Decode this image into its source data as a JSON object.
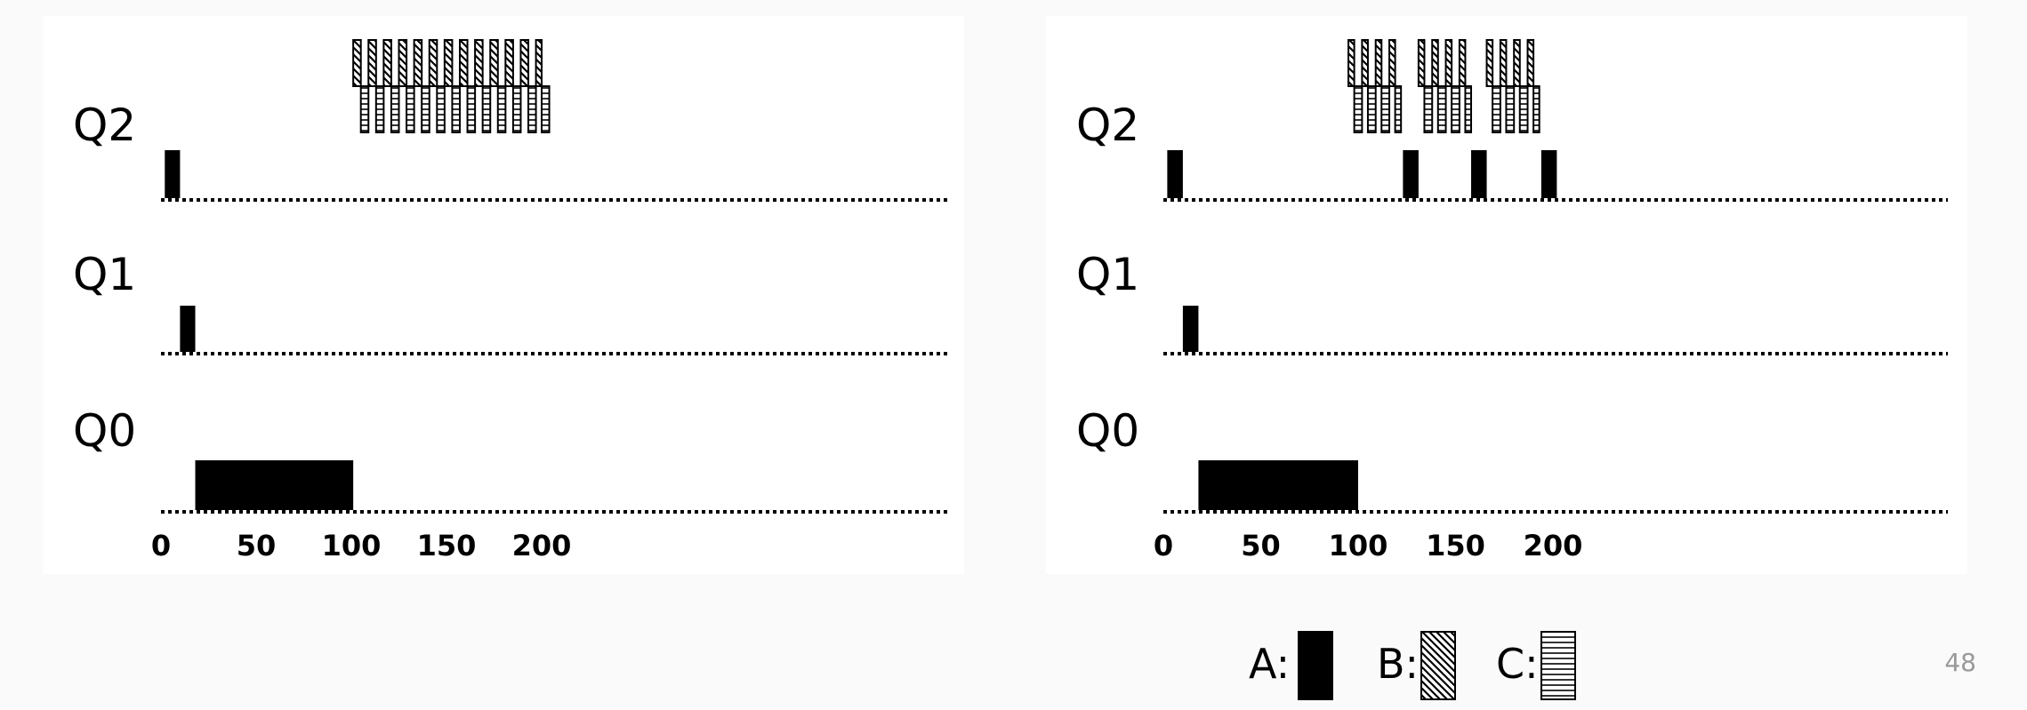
{
  "slide": {
    "page_number": "48"
  },
  "queues": [
    "Q2",
    "Q1",
    "Q0"
  ],
  "axis": {
    "min": 0,
    "max": 200,
    "ticks": [
      "0",
      "50",
      "100",
      "150",
      "200"
    ]
  },
  "legend": [
    {
      "label": "A:",
      "job": "A",
      "pattern": "solid"
    },
    {
      "label": "B:",
      "job": "B",
      "pattern": "diagonal"
    },
    {
      "label": "C:",
      "job": "C",
      "pattern": "horizontal"
    }
  ],
  "chart_data": [
    {
      "type": "gantt",
      "panel": "left",
      "segments": [
        {
          "job": "A",
          "queue": "Q2",
          "start": 2,
          "end": 10
        },
        {
          "job": "A",
          "queue": "Q1",
          "start": 10,
          "end": 18
        },
        {
          "job": "A",
          "queue": "Q0",
          "start": 18,
          "end": 101
        },
        {
          "job": "B",
          "queue": "Q2",
          "start": 101,
          "end": 105
        },
        {
          "job": "C",
          "queue": "Q2",
          "start": 105,
          "end": 109
        },
        {
          "job": "B",
          "queue": "Q2",
          "start": 109,
          "end": 113
        },
        {
          "job": "C",
          "queue": "Q2",
          "start": 113,
          "end": 117
        },
        {
          "job": "B",
          "queue": "Q2",
          "start": 117,
          "end": 121
        },
        {
          "job": "C",
          "queue": "Q2",
          "start": 121,
          "end": 125
        },
        {
          "job": "B",
          "queue": "Q2",
          "start": 125,
          "end": 129
        },
        {
          "job": "C",
          "queue": "Q2",
          "start": 129,
          "end": 133
        },
        {
          "job": "B",
          "queue": "Q2",
          "start": 133,
          "end": 137
        },
        {
          "job": "C",
          "queue": "Q2",
          "start": 137,
          "end": 141
        },
        {
          "job": "B",
          "queue": "Q2",
          "start": 141,
          "end": 145
        },
        {
          "job": "C",
          "queue": "Q2",
          "start": 145,
          "end": 149
        },
        {
          "job": "B",
          "queue": "Q2",
          "start": 149,
          "end": 153
        },
        {
          "job": "C",
          "queue": "Q2",
          "start": 153,
          "end": 157
        },
        {
          "job": "B",
          "queue": "Q2",
          "start": 157,
          "end": 161
        },
        {
          "job": "C",
          "queue": "Q2",
          "start": 161,
          "end": 165
        },
        {
          "job": "B",
          "queue": "Q2",
          "start": 165,
          "end": 169
        },
        {
          "job": "C",
          "queue": "Q2",
          "start": 169,
          "end": 173
        },
        {
          "job": "B",
          "queue": "Q2",
          "start": 173,
          "end": 177
        },
        {
          "job": "C",
          "queue": "Q2",
          "start": 177,
          "end": 181
        },
        {
          "job": "B",
          "queue": "Q2",
          "start": 181,
          "end": 185
        },
        {
          "job": "C",
          "queue": "Q2",
          "start": 185,
          "end": 189
        },
        {
          "job": "B",
          "queue": "Q2",
          "start": 189,
          "end": 193
        },
        {
          "job": "C",
          "queue": "Q2",
          "start": 193,
          "end": 197
        },
        {
          "job": "B",
          "queue": "Q2",
          "start": 197,
          "end": 200
        },
        {
          "job": "C",
          "queue": "Q2",
          "start": 200,
          "end": 204
        }
      ]
    },
    {
      "type": "gantt",
      "panel": "right",
      "segments": [
        {
          "job": "A",
          "queue": "Q2",
          "start": 2,
          "end": 10
        },
        {
          "job": "A",
          "queue": "Q1",
          "start": 10,
          "end": 18
        },
        {
          "job": "A",
          "queue": "Q0",
          "start": 18,
          "end": 100
        },
        {
          "job": "B",
          "queue": "Q2",
          "start": 95,
          "end": 98
        },
        {
          "job": "C",
          "queue": "Q2",
          "start": 98,
          "end": 102
        },
        {
          "job": "B",
          "queue": "Q2",
          "start": 102,
          "end": 105
        },
        {
          "job": "C",
          "queue": "Q2",
          "start": 105,
          "end": 109
        },
        {
          "job": "B",
          "queue": "Q2",
          "start": 109,
          "end": 112
        },
        {
          "job": "C",
          "queue": "Q2",
          "start": 112,
          "end": 116
        },
        {
          "job": "B",
          "queue": "Q2",
          "start": 116,
          "end": 119
        },
        {
          "job": "C",
          "queue": "Q2",
          "start": 119,
          "end": 122
        },
        {
          "job": "A",
          "queue": "Q2",
          "start": 123,
          "end": 131
        },
        {
          "job": "B",
          "queue": "Q2",
          "start": 131,
          "end": 134
        },
        {
          "job": "C",
          "queue": "Q2",
          "start": 134,
          "end": 138
        },
        {
          "job": "B",
          "queue": "Q2",
          "start": 138,
          "end": 141
        },
        {
          "job": "C",
          "queue": "Q2",
          "start": 141,
          "end": 145
        },
        {
          "job": "B",
          "queue": "Q2",
          "start": 145,
          "end": 148
        },
        {
          "job": "C",
          "queue": "Q2",
          "start": 148,
          "end": 152
        },
        {
          "job": "B",
          "queue": "Q2",
          "start": 152,
          "end": 155
        },
        {
          "job": "C",
          "queue": "Q2",
          "start": 155,
          "end": 158
        },
        {
          "job": "A",
          "queue": "Q2",
          "start": 158,
          "end": 166
        },
        {
          "job": "B",
          "queue": "Q2",
          "start": 166,
          "end": 169
        },
        {
          "job": "C",
          "queue": "Q2",
          "start": 169,
          "end": 173
        },
        {
          "job": "B",
          "queue": "Q2",
          "start": 173,
          "end": 176
        },
        {
          "job": "C",
          "queue": "Q2",
          "start": 176,
          "end": 180
        },
        {
          "job": "B",
          "queue": "Q2",
          "start": 180,
          "end": 183
        },
        {
          "job": "C",
          "queue": "Q2",
          "start": 183,
          "end": 187
        },
        {
          "job": "B",
          "queue": "Q2",
          "start": 187,
          "end": 190
        },
        {
          "job": "C",
          "queue": "Q2",
          "start": 190,
          "end": 193
        },
        {
          "job": "A",
          "queue": "Q2",
          "start": 194,
          "end": 202
        }
      ]
    }
  ]
}
